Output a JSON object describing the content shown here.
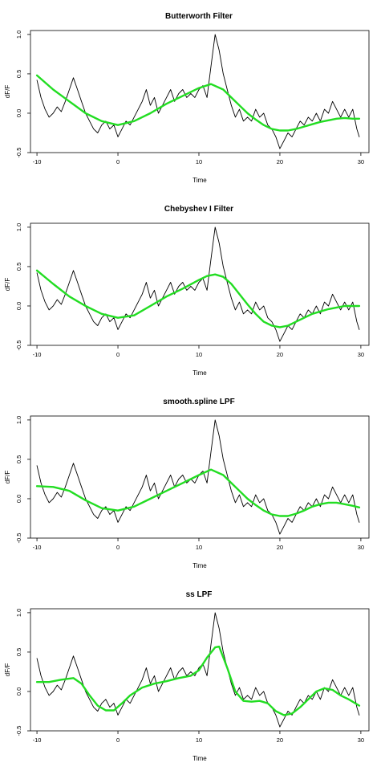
{
  "figure": {
    "background": "#ffffff"
  },
  "colors": {
    "raw": "#000000",
    "filtered": "#22dd22"
  },
  "chart_data": [
    {
      "type": "line",
      "title": "Butterworth Filter",
      "xlabel": "Time",
      "ylabel": "dF/F",
      "xlim": [
        -10.8,
        31
      ],
      "ylim": [
        -0.5,
        1.05
      ],
      "xticks": [
        -10,
        0,
        10,
        20,
        30
      ],
      "yticks": [
        -0.5,
        0.0,
        0.5,
        1.0
      ],
      "xtick_labels": [
        "-10",
        "0",
        "10",
        "20",
        "30"
      ],
      "ytick_labels": [
        "-0.5",
        "0.0",
        "0.5",
        "1.0"
      ],
      "series": [
        {
          "style": "raw",
          "x": [
            -10,
            -9.5,
            -9,
            -8.5,
            -8,
            -7.5,
            -7,
            -6.5,
            -6,
            -5.5,
            -5,
            -4.5,
            -4,
            -3.5,
            -3,
            -2.5,
            -2,
            -1.5,
            -1,
            -0.5,
            0,
            0.5,
            1,
            1.5,
            2,
            2.5,
            3,
            3.5,
            4,
            4.5,
            5,
            5.5,
            6,
            6.5,
            7,
            7.5,
            8,
            8.5,
            9,
            9.5,
            10,
            10.5,
            11,
            11.5,
            12,
            12.5,
            13,
            13.5,
            14,
            14.5,
            15,
            15.5,
            16,
            16.5,
            17,
            17.5,
            18,
            18.5,
            19,
            19.5,
            20,
            20.5,
            21,
            21.5,
            22,
            22.5,
            23,
            23.5,
            24,
            24.5,
            25,
            25.5,
            26,
            26.5,
            27,
            27.5,
            28,
            28.5,
            29,
            29.5,
            29.8
          ],
          "y": [
            0.42,
            0.2,
            0.05,
            -0.05,
            0.0,
            0.08,
            0.02,
            0.15,
            0.3,
            0.45,
            0.3,
            0.15,
            0.0,
            -0.1,
            -0.2,
            -0.25,
            -0.15,
            -0.1,
            -0.2,
            -0.15,
            -0.3,
            -0.2,
            -0.1,
            -0.15,
            -0.05,
            0.05,
            0.15,
            0.3,
            0.1,
            0.2,
            0.0,
            0.1,
            0.2,
            0.3,
            0.15,
            0.25,
            0.3,
            0.2,
            0.25,
            0.2,
            0.3,
            0.35,
            0.2,
            0.6,
            1.0,
            0.8,
            0.5,
            0.3,
            0.1,
            -0.05,
            0.05,
            -0.1,
            -0.05,
            -0.1,
            0.05,
            -0.05,
            0.0,
            -0.15,
            -0.2,
            -0.3,
            -0.45,
            -0.35,
            -0.25,
            -0.3,
            -0.2,
            -0.1,
            -0.15,
            -0.05,
            -0.1,
            0.0,
            -0.1,
            0.05,
            0.0,
            0.15,
            0.05,
            -0.05,
            0.05,
            -0.05,
            0.05,
            -0.2,
            -0.3
          ]
        },
        {
          "style": "filtered",
          "x": [
            -10,
            -8,
            -6,
            -4,
            -2,
            0,
            2,
            4,
            6,
            8,
            10,
            11.5,
            13,
            14,
            15,
            16,
            17,
            18,
            19,
            20,
            21,
            22,
            23,
            24,
            25,
            26,
            27,
            28,
            29,
            29.8
          ],
          "y": [
            0.48,
            0.3,
            0.15,
            0.0,
            -0.1,
            -0.15,
            -0.1,
            0.0,
            0.12,
            0.22,
            0.32,
            0.37,
            0.3,
            0.2,
            0.1,
            0.0,
            -0.08,
            -0.15,
            -0.2,
            -0.22,
            -0.22,
            -0.2,
            -0.17,
            -0.14,
            -0.11,
            -0.09,
            -0.07,
            -0.06,
            -0.07,
            -0.07
          ]
        }
      ]
    },
    {
      "type": "line",
      "title": "Chebyshev I Filter",
      "xlabel": "Time",
      "ylabel": "dF/F",
      "xlim": [
        -10.8,
        31
      ],
      "ylim": [
        -0.5,
        1.05
      ],
      "xticks": [
        -10,
        0,
        10,
        20,
        30
      ],
      "yticks": [
        -0.5,
        0.0,
        0.5,
        1.0
      ],
      "xtick_labels": [
        "-10",
        "0",
        "10",
        "20",
        "30"
      ],
      "ytick_labels": [
        "-0.5",
        "0.0",
        "0.5",
        "1.0"
      ],
      "series": [
        {
          "style": "raw",
          "x": [
            -10,
            -9.5,
            -9,
            -8.5,
            -8,
            -7.5,
            -7,
            -6.5,
            -6,
            -5.5,
            -5,
            -4.5,
            -4,
            -3.5,
            -3,
            -2.5,
            -2,
            -1.5,
            -1,
            -0.5,
            0,
            0.5,
            1,
            1.5,
            2,
            2.5,
            3,
            3.5,
            4,
            4.5,
            5,
            5.5,
            6,
            6.5,
            7,
            7.5,
            8,
            8.5,
            9,
            9.5,
            10,
            10.5,
            11,
            11.5,
            12,
            12.5,
            13,
            13.5,
            14,
            14.5,
            15,
            15.5,
            16,
            16.5,
            17,
            17.5,
            18,
            18.5,
            19,
            19.5,
            20,
            20.5,
            21,
            21.5,
            22,
            22.5,
            23,
            23.5,
            24,
            24.5,
            25,
            25.5,
            26,
            26.5,
            27,
            27.5,
            28,
            28.5,
            29,
            29.5,
            29.8
          ],
          "y": [
            0.42,
            0.2,
            0.05,
            -0.05,
            0.0,
            0.08,
            0.02,
            0.15,
            0.3,
            0.45,
            0.3,
            0.15,
            0.0,
            -0.1,
            -0.2,
            -0.25,
            -0.15,
            -0.1,
            -0.2,
            -0.15,
            -0.3,
            -0.2,
            -0.1,
            -0.15,
            -0.05,
            0.05,
            0.15,
            0.3,
            0.1,
            0.2,
            0.0,
            0.1,
            0.2,
            0.3,
            0.15,
            0.25,
            0.3,
            0.2,
            0.25,
            0.2,
            0.3,
            0.35,
            0.2,
            0.6,
            1.0,
            0.8,
            0.5,
            0.3,
            0.1,
            -0.05,
            0.05,
            -0.1,
            -0.05,
            -0.1,
            0.05,
            -0.05,
            0.0,
            -0.15,
            -0.2,
            -0.3,
            -0.45,
            -0.35,
            -0.25,
            -0.3,
            -0.2,
            -0.1,
            -0.15,
            -0.05,
            -0.1,
            0.0,
            -0.1,
            0.05,
            0.0,
            0.15,
            0.05,
            -0.05,
            0.05,
            -0.05,
            0.05,
            -0.2,
            -0.3
          ]
        },
        {
          "style": "filtered",
          "x": [
            -10,
            -8,
            -6,
            -4,
            -2,
            0,
            2,
            4,
            6,
            8,
            10,
            11,
            12,
            13,
            14,
            15,
            16,
            17,
            18,
            19,
            20,
            21,
            22,
            23,
            24,
            25,
            26,
            27,
            28,
            29,
            29.8
          ],
          "y": [
            0.45,
            0.28,
            0.12,
            0.0,
            -0.1,
            -0.15,
            -0.12,
            0.0,
            0.12,
            0.22,
            0.33,
            0.38,
            0.4,
            0.37,
            0.28,
            0.15,
            0.02,
            -0.1,
            -0.2,
            -0.25,
            -0.27,
            -0.25,
            -0.2,
            -0.15,
            -0.1,
            -0.07,
            -0.04,
            -0.02,
            0.0,
            0.0,
            0.0
          ]
        }
      ]
    },
    {
      "type": "line",
      "title": "smooth.spline LPF",
      "xlabel": "Time",
      "ylabel": "dF/F",
      "xlim": [
        -10.8,
        31
      ],
      "ylim": [
        -0.5,
        1.05
      ],
      "xticks": [
        -10,
        0,
        10,
        20,
        30
      ],
      "yticks": [
        -0.5,
        0.0,
        0.5,
        1.0
      ],
      "xtick_labels": [
        "-10",
        "0",
        "10",
        "20",
        "30"
      ],
      "ytick_labels": [
        "-0.5",
        "0.0",
        "0.5",
        "1.0"
      ],
      "series": [
        {
          "style": "raw",
          "x": [
            -10,
            -9.5,
            -9,
            -8.5,
            -8,
            -7.5,
            -7,
            -6.5,
            -6,
            -5.5,
            -5,
            -4.5,
            -4,
            -3.5,
            -3,
            -2.5,
            -2,
            -1.5,
            -1,
            -0.5,
            0,
            0.5,
            1,
            1.5,
            2,
            2.5,
            3,
            3.5,
            4,
            4.5,
            5,
            5.5,
            6,
            6.5,
            7,
            7.5,
            8,
            8.5,
            9,
            9.5,
            10,
            10.5,
            11,
            11.5,
            12,
            12.5,
            13,
            13.5,
            14,
            14.5,
            15,
            15.5,
            16,
            16.5,
            17,
            17.5,
            18,
            18.5,
            19,
            19.5,
            20,
            20.5,
            21,
            21.5,
            22,
            22.5,
            23,
            23.5,
            24,
            24.5,
            25,
            25.5,
            26,
            26.5,
            27,
            27.5,
            28,
            28.5,
            29,
            29.5,
            29.8
          ],
          "y": [
            0.42,
            0.2,
            0.05,
            -0.05,
            0.0,
            0.08,
            0.02,
            0.15,
            0.3,
            0.45,
            0.3,
            0.15,
            0.0,
            -0.1,
            -0.2,
            -0.25,
            -0.15,
            -0.1,
            -0.2,
            -0.15,
            -0.3,
            -0.2,
            -0.1,
            -0.15,
            -0.05,
            0.05,
            0.15,
            0.3,
            0.1,
            0.2,
            0.0,
            0.1,
            0.2,
            0.3,
            0.15,
            0.25,
            0.3,
            0.2,
            0.25,
            0.2,
            0.3,
            0.35,
            0.2,
            0.6,
            1.0,
            0.8,
            0.5,
            0.3,
            0.1,
            -0.05,
            0.05,
            -0.1,
            -0.05,
            -0.1,
            0.05,
            -0.05,
            0.0,
            -0.15,
            -0.2,
            -0.3,
            -0.45,
            -0.35,
            -0.25,
            -0.3,
            -0.2,
            -0.1,
            -0.15,
            -0.05,
            -0.1,
            0.0,
            -0.1,
            0.05,
            0.0,
            0.15,
            0.05,
            -0.05,
            0.05,
            -0.05,
            0.05,
            -0.2,
            -0.3
          ]
        },
        {
          "style": "filtered",
          "x": [
            -10,
            -8,
            -6,
            -4,
            -2,
            0,
            2,
            4,
            6,
            8,
            10,
            11.5,
            13,
            14,
            15,
            16,
            17,
            18,
            19,
            20,
            21,
            22,
            23,
            24,
            25,
            26,
            27,
            28,
            29,
            29.8
          ],
          "y": [
            0.16,
            0.15,
            0.1,
            -0.02,
            -0.12,
            -0.15,
            -0.1,
            0.0,
            0.1,
            0.2,
            0.3,
            0.37,
            0.3,
            0.2,
            0.1,
            0.0,
            -0.08,
            -0.15,
            -0.2,
            -0.22,
            -0.22,
            -0.19,
            -0.15,
            -0.1,
            -0.07,
            -0.05,
            -0.05,
            -0.07,
            -0.09,
            -0.11
          ]
        }
      ]
    },
    {
      "type": "line",
      "title": "ss LPF",
      "xlabel": "Time",
      "ylabel": "dF/F",
      "xlim": [
        -10.8,
        31
      ],
      "ylim": [
        -0.5,
        1.05
      ],
      "xticks": [
        -10,
        0,
        10,
        20,
        30
      ],
      "yticks": [
        -0.5,
        0.0,
        0.5,
        1.0
      ],
      "xtick_labels": [
        "-10",
        "0",
        "10",
        "20",
        "30"
      ],
      "ytick_labels": [
        "-0.5",
        "0.0",
        "0.5",
        "1.0"
      ],
      "series": [
        {
          "style": "raw",
          "x": [
            -10,
            -9.5,
            -9,
            -8.5,
            -8,
            -7.5,
            -7,
            -6.5,
            -6,
            -5.5,
            -5,
            -4.5,
            -4,
            -3.5,
            -3,
            -2.5,
            -2,
            -1.5,
            -1,
            -0.5,
            0,
            0.5,
            1,
            1.5,
            2,
            2.5,
            3,
            3.5,
            4,
            4.5,
            5,
            5.5,
            6,
            6.5,
            7,
            7.5,
            8,
            8.5,
            9,
            9.5,
            10,
            10.5,
            11,
            11.5,
            12,
            12.5,
            13,
            13.5,
            14,
            14.5,
            15,
            15.5,
            16,
            16.5,
            17,
            17.5,
            18,
            18.5,
            19,
            19.5,
            20,
            20.5,
            21,
            21.5,
            22,
            22.5,
            23,
            23.5,
            24,
            24.5,
            25,
            25.5,
            26,
            26.5,
            27,
            27.5,
            28,
            28.5,
            29,
            29.5,
            29.8
          ],
          "y": [
            0.42,
            0.2,
            0.05,
            -0.05,
            0.0,
            0.08,
            0.02,
            0.15,
            0.3,
            0.45,
            0.3,
            0.15,
            0.0,
            -0.1,
            -0.2,
            -0.25,
            -0.15,
            -0.1,
            -0.2,
            -0.15,
            -0.3,
            -0.2,
            -0.1,
            -0.15,
            -0.05,
            0.05,
            0.15,
            0.3,
            0.1,
            0.2,
            0.0,
            0.1,
            0.2,
            0.3,
            0.15,
            0.25,
            0.3,
            0.2,
            0.25,
            0.2,
            0.3,
            0.35,
            0.2,
            0.6,
            1.0,
            0.8,
            0.5,
            0.3,
            0.1,
            -0.05,
            0.05,
            -0.1,
            -0.05,
            -0.1,
            0.05,
            -0.05,
            0.0,
            -0.15,
            -0.2,
            -0.3,
            -0.45,
            -0.35,
            -0.25,
            -0.3,
            -0.2,
            -0.1,
            -0.15,
            -0.05,
            -0.1,
            0.0,
            -0.1,
            0.05,
            0.0,
            0.15,
            0.05,
            -0.05,
            0.05,
            -0.05,
            0.05,
            -0.2,
            -0.3
          ]
        },
        {
          "style": "filtered",
          "x": [
            -10,
            -8.5,
            -7,
            -5.5,
            -4.5,
            -3.5,
            -2.5,
            -1.5,
            -0.5,
            0.5,
            1.5,
            3,
            4.5,
            6,
            7.5,
            9,
            10,
            11,
            12,
            12.5,
            13.5,
            14.5,
            15.5,
            16.5,
            17.5,
            18.5,
            19.5,
            20.5,
            21.5,
            22.5,
            23.5,
            24.5,
            25.5,
            26.5,
            27.5,
            28.5,
            29.8
          ],
          "y": [
            0.12,
            0.12,
            0.15,
            0.17,
            0.1,
            -0.05,
            -0.18,
            -0.24,
            -0.24,
            -0.15,
            -0.05,
            0.05,
            0.1,
            0.13,
            0.17,
            0.2,
            0.27,
            0.43,
            0.56,
            0.57,
            0.3,
            0.0,
            -0.12,
            -0.13,
            -0.12,
            -0.15,
            -0.25,
            -0.3,
            -0.28,
            -0.2,
            -0.1,
            0.0,
            0.04,
            0.02,
            -0.05,
            -0.1,
            -0.18
          ]
        }
      ]
    }
  ]
}
